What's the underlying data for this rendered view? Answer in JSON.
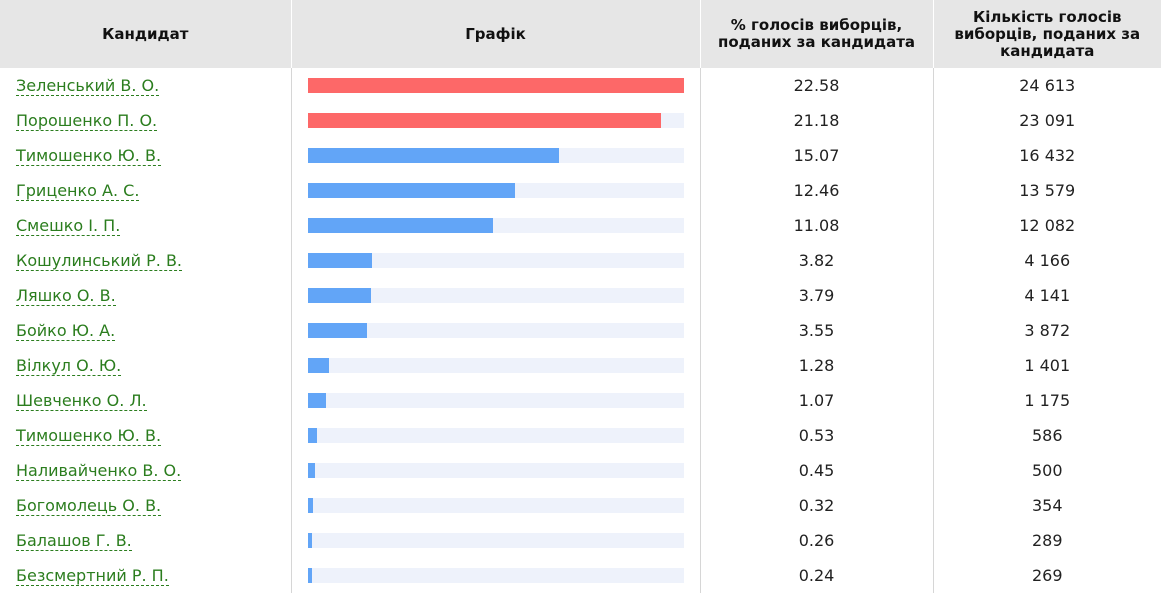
{
  "headers": {
    "candidate": "Кандидат",
    "chart": "Графік",
    "percent": "% голосів виборців, поданих за кандидата",
    "count": "Кількість голосів виборців, поданих за кандидата"
  },
  "colors": {
    "top": "#fd6868",
    "other": "#62a5f7",
    "track": "#eef2fb"
  },
  "chart_data": {
    "type": "bar",
    "x_max": 22.58,
    "rows": [
      {
        "name": "Зеленський В. О.",
        "pct": 22.58,
        "pct_text": "22.58",
        "count": 24613,
        "count_text": "24 613",
        "highlight": true
      },
      {
        "name": "Порошенко П. О.",
        "pct": 21.18,
        "pct_text": "21.18",
        "count": 23091,
        "count_text": "23 091",
        "highlight": true
      },
      {
        "name": "Тимошенко Ю. В.",
        "pct": 15.07,
        "pct_text": "15.07",
        "count": 16432,
        "count_text": "16 432",
        "highlight": false
      },
      {
        "name": "Гриценко А. С.",
        "pct": 12.46,
        "pct_text": "12.46",
        "count": 13579,
        "count_text": "13 579",
        "highlight": false
      },
      {
        "name": "Смешко І. П.",
        "pct": 11.08,
        "pct_text": "11.08",
        "count": 12082,
        "count_text": "12 082",
        "highlight": false
      },
      {
        "name": "Кошулинський Р. В.",
        "pct": 3.82,
        "pct_text": "3.82",
        "count": 4166,
        "count_text": "4 166",
        "highlight": false
      },
      {
        "name": "Ляшко О. В.",
        "pct": 3.79,
        "pct_text": "3.79",
        "count": 4141,
        "count_text": "4 141",
        "highlight": false
      },
      {
        "name": "Бойко Ю. А.",
        "pct": 3.55,
        "pct_text": "3.55",
        "count": 3872,
        "count_text": "3 872",
        "highlight": false
      },
      {
        "name": "Вілкул О. Ю.",
        "pct": 1.28,
        "pct_text": "1.28",
        "count": 1401,
        "count_text": "1 401",
        "highlight": false
      },
      {
        "name": "Шевченко О. Л.",
        "pct": 1.07,
        "pct_text": "1.07",
        "count": 1175,
        "count_text": "1 175",
        "highlight": false
      },
      {
        "name": "Тимошенко Ю. В.",
        "pct": 0.53,
        "pct_text": "0.53",
        "count": 586,
        "count_text": "586",
        "highlight": false
      },
      {
        "name": "Наливайченко В. О.",
        "pct": 0.45,
        "pct_text": "0.45",
        "count": 500,
        "count_text": "500",
        "highlight": false
      },
      {
        "name": "Богомолець О. В.",
        "pct": 0.32,
        "pct_text": "0.32",
        "count": 354,
        "count_text": "354",
        "highlight": false
      },
      {
        "name": "Балашов Г. В.",
        "pct": 0.26,
        "pct_text": "0.26",
        "count": 289,
        "count_text": "289",
        "highlight": false
      },
      {
        "name": "Безсмертний Р. П.",
        "pct": 0.24,
        "pct_text": "0.24",
        "count": 269,
        "count_text": "269",
        "highlight": false
      }
    ]
  }
}
